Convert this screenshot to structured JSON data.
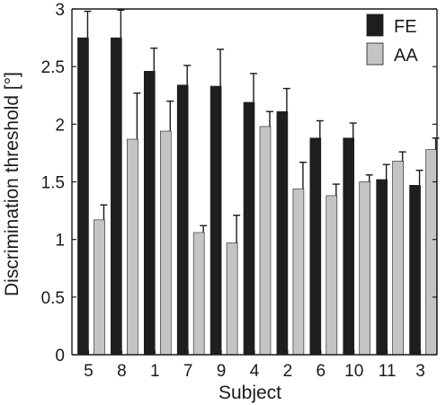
{
  "chart_data": {
    "type": "bar",
    "xlabel": "Subject",
    "ylabel": "Discrimination threshold [°]",
    "ylim": [
      0,
      3
    ],
    "yticks": [
      0,
      0.5,
      1,
      1.5,
      2,
      2.5,
      3
    ],
    "ytick_labels": [
      "0",
      "0.5",
      "1",
      "1.5",
      "2",
      "2.5",
      "3"
    ],
    "grid": false,
    "legend_position": "top-right",
    "error_bars": "upper",
    "categories": [
      "5",
      "8",
      "1",
      "7",
      "9",
      "4",
      "2",
      "6",
      "10",
      "11",
      "3"
    ],
    "series": [
      {
        "name": "FE",
        "color": "#1e1e1e",
        "values": [
          2.75,
          2.75,
          2.46,
          2.34,
          2.33,
          2.19,
          2.11,
          1.88,
          1.88,
          1.52,
          1.47
        ],
        "errors": [
          0.23,
          0.24,
          0.2,
          0.17,
          0.32,
          0.25,
          0.2,
          0.15,
          0.13,
          0.13,
          0.13
        ]
      },
      {
        "name": "AA",
        "color": "#c4c4c4",
        "values": [
          1.17,
          1.87,
          1.94,
          1.06,
          0.97,
          1.98,
          1.44,
          1.38,
          1.5,
          1.68,
          1.78
        ],
        "errors": [
          0.13,
          0.4,
          0.26,
          0.06,
          0.24,
          0.13,
          0.23,
          0.1,
          0.06,
          0.08,
          0.1
        ]
      }
    ]
  }
}
